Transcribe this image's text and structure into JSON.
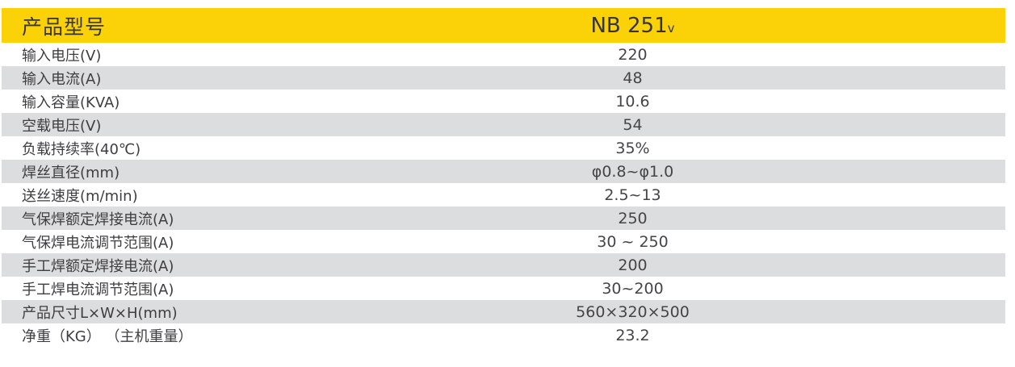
{
  "colors": {
    "header_bg": "#FBD108",
    "alt_row_bg": "#DCDDDE",
    "header_text": "#36353D",
    "label_text": "#3E3E40",
    "value_text": "#454548"
  },
  "table": {
    "header": {
      "label": "产品型号",
      "model": "NB 251",
      "model_suffix": "v"
    },
    "rows": [
      {
        "label": "输入电压(V)",
        "value": "220"
      },
      {
        "label": "输入电流(A)",
        "value": "48"
      },
      {
        "label": "输入容量(KVA)",
        "value": "10.6"
      },
      {
        "label": "空载电压(V)",
        "value": "54"
      },
      {
        "label": "负载持续率(40℃)",
        "value": "35%"
      },
      {
        "label": "焊丝直径(mm)",
        "value": "φ0.8~φ1.0"
      },
      {
        "label": "送丝速度(m/min)",
        "value": "2.5~13"
      },
      {
        "label": "气保焊额定焊接电流(A)",
        "value": "250"
      },
      {
        "label": "气保焊电流调节范围(A)",
        "value": "30 ~ 250"
      },
      {
        "label": "手工焊额定焊接电流(A)",
        "value": "200"
      },
      {
        "label": "手工焊电流调节范围(A)",
        "value": "30~200"
      },
      {
        "label": "产品尺寸L×W×H(mm)",
        "value": "560×320×500"
      },
      {
        "label": "净重（KG） （主机重量）",
        "value": "23.2"
      }
    ]
  }
}
